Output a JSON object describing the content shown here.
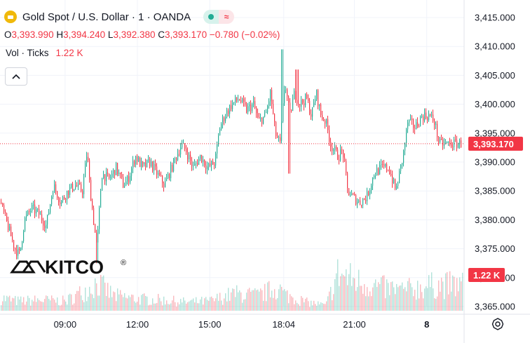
{
  "header": {
    "title": "Gold Spot / U.S. Dollar · 1 · OANDA",
    "ohlc": [
      {
        "key": "O",
        "value": "3,393.990"
      },
      {
        "key": "H",
        "value": "3,394.240"
      },
      {
        "key": "L",
        "value": "3,392.380"
      },
      {
        "key": "C",
        "value": "3,393.170"
      }
    ],
    "change": "−0.780 (−0.02%)",
    "vol_label": "Vol · Ticks",
    "vol_value": "1.22 K",
    "status_icon": "market-open-dot-icon",
    "mode_icon": "wave-icon",
    "collapse_icon": "chevron-up-icon",
    "settings_icon": "gear-icon"
  },
  "watermark": "KITCO",
  "watermark_mark": "®",
  "colors": {
    "up": "#22ab94",
    "down": "#f23645",
    "price_line": "#f23645",
    "gold": "#f0b90b"
  },
  "chart_data": {
    "type": "candlestick",
    "y_ticks": [
      "3,415.000",
      "3,410.000",
      "3,405.000",
      "3,400.000",
      "3,395.000",
      "3,390.000",
      "3,385.000",
      "3,380.000",
      "3,375.000",
      "3,370.000",
      "3,365.000"
    ],
    "y_tick_values": [
      3415,
      3410,
      3405,
      3400,
      3395,
      3390,
      3385,
      3380,
      3375,
      3370,
      3365
    ],
    "ylim": [
      3365,
      3415
    ],
    "x_ticks": [
      "09:00",
      "12:00",
      "15:00",
      "18:04",
      "21:00",
      "8"
    ],
    "x_tick_hours": [
      9,
      12,
      15,
      18.07,
      21,
      24
    ],
    "xlim_hours": [
      6.3,
      25.55
    ],
    "last_price_label": "3,393.170",
    "last_price": 3393.17,
    "volume_label": "1.22 K",
    "volume_axis_ref": 1.22,
    "price_path": [
      [
        6.3,
        3383
      ],
      [
        6.6,
        3379
      ],
      [
        6.9,
        3375
      ],
      [
        7.1,
        3374
      ],
      [
        7.3,
        3380
      ],
      [
        7.6,
        3382
      ],
      [
        7.9,
        3381
      ],
      [
        8.2,
        3379
      ],
      [
        8.5,
        3386
      ],
      [
        8.8,
        3383
      ],
      [
        9.1,
        3385
      ],
      [
        9.4,
        3386
      ],
      [
        9.7,
        3385
      ],
      [
        9.9,
        3392
      ],
      [
        10.0,
        3386
      ],
      [
        10.3,
        3375
      ],
      [
        10.5,
        3388
      ],
      [
        10.8,
        3387
      ],
      [
        11.1,
        3389
      ],
      [
        11.4,
        3386
      ],
      [
        11.6,
        3387
      ],
      [
        11.9,
        3391
      ],
      [
        12.2,
        3389
      ],
      [
        12.5,
        3390
      ],
      [
        12.8,
        3388
      ],
      [
        13.1,
        3386
      ],
      [
        13.3,
        3388
      ],
      [
        13.6,
        3391
      ],
      [
        13.8,
        3393
      ],
      [
        14.0,
        3392
      ],
      [
        14.3,
        3389
      ],
      [
        14.6,
        3391
      ],
      [
        14.9,
        3389
      ],
      [
        15.2,
        3390
      ],
      [
        15.4,
        3396
      ],
      [
        15.6,
        3398
      ],
      [
        15.9,
        3400
      ],
      [
        16.2,
        3401
      ],
      [
        16.5,
        3399
      ],
      [
        16.8,
        3400
      ],
      [
        17.0,
        3397
      ],
      [
        17.3,
        3398
      ],
      [
        17.5,
        3402
      ],
      [
        17.7,
        3395
      ],
      [
        17.9,
        3393
      ],
      [
        18.1,
        3404
      ],
      [
        18.3,
        3398
      ],
      [
        18.5,
        3402
      ],
      [
        18.7,
        3400
      ],
      [
        19.0,
        3401
      ],
      [
        19.2,
        3398
      ],
      [
        19.4,
        3402
      ],
      [
        19.6,
        3398
      ],
      [
        19.8,
        3397
      ],
      [
        20.0,
        3393
      ],
      [
        20.3,
        3391
      ],
      [
        20.5,
        3392
      ],
      [
        20.7,
        3385
      ],
      [
        20.9,
        3384
      ],
      [
        21.2,
        3383
      ],
      [
        21.5,
        3384
      ],
      [
        21.8,
        3388
      ],
      [
        22.1,
        3389
      ],
      [
        22.4,
        3389
      ],
      [
        22.7,
        3385
      ],
      [
        23.0,
        3391
      ],
      [
        23.2,
        3397
      ],
      [
        23.5,
        3396
      ],
      [
        23.8,
        3398
      ],
      [
        24.1,
        3398
      ],
      [
        24.3,
        3397
      ],
      [
        24.5,
        3393.17
      ]
    ],
    "notable_wicks": [
      [
        10.3,
        3372.5
      ],
      [
        18.0,
        3409.5
      ],
      [
        18.3,
        3388
      ],
      [
        18.6,
        3406
      ]
    ],
    "volume_profile": [
      [
        6.3,
        0.6
      ],
      [
        7.0,
        0.45
      ],
      [
        8.0,
        0.5
      ],
      [
        9.0,
        0.45
      ],
      [
        10.0,
        1.05
      ],
      [
        10.3,
        1.3
      ],
      [
        11.0,
        0.7
      ],
      [
        12.0,
        0.55
      ],
      [
        13.0,
        0.5
      ],
      [
        14.0,
        0.4
      ],
      [
        15.0,
        0.45
      ],
      [
        16.0,
        0.8
      ],
      [
        17.0,
        0.7
      ],
      [
        17.8,
        1.1
      ],
      [
        18.1,
        0.75
      ],
      [
        19.0,
        0.4
      ],
      [
        19.8,
        0.25
      ],
      [
        20.3,
        1.75
      ],
      [
        21.0,
        1.4
      ],
      [
        22.0,
        1.1
      ],
      [
        23.0,
        0.95
      ],
      [
        24.0,
        1.15
      ],
      [
        24.5,
        1.2
      ]
    ]
  }
}
